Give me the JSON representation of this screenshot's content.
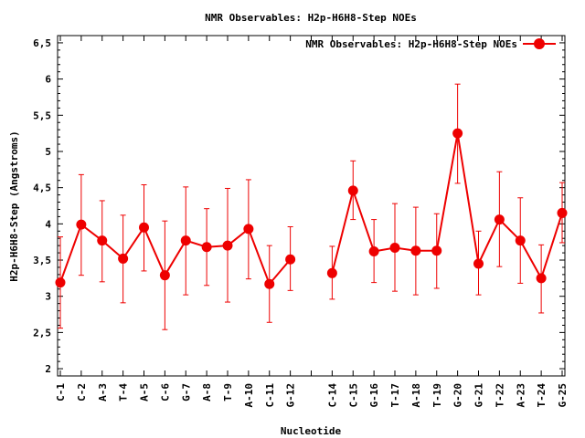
{
  "chart_data": {
    "type": "line",
    "title": "NMR Observables: H2p-H6H8-Step NOEs",
    "xlabel": "Nucleotide",
    "ylabel": "H2p-H6H8-Step (Angstroms)",
    "ylim": [
      1.9,
      6.6
    ],
    "yticks": [
      "2",
      "2,5",
      "3",
      "3,5",
      "4",
      "4,5",
      "5",
      "5,5",
      "6",
      "6,5"
    ],
    "ytick_values": [
      2,
      2.5,
      3,
      3.5,
      4,
      4.5,
      5,
      5.5,
      6,
      6.5
    ],
    "legend_position": "top-right",
    "grid": false,
    "series_color": "#ee0000",
    "categories": [
      "C-1",
      "C-2",
      "A-3",
      "T-4",
      "A-5",
      "C-6",
      "G-7",
      "A-8",
      "T-9",
      "A-10",
      "C-11",
      "G-12",
      "",
      "C-14",
      "C-15",
      "G-16",
      "T-17",
      "A-18",
      "T-19",
      "G-20",
      "G-21",
      "T-22",
      "A-23",
      "T-24",
      "G-25"
    ],
    "series": [
      {
        "name": "NMR Observables: H2p-H6H8-Step NOEs",
        "values": [
          3.19,
          3.99,
          3.77,
          3.52,
          3.95,
          3.29,
          3.77,
          3.68,
          3.7,
          3.93,
          3.17,
          3.51,
          null,
          3.32,
          4.46,
          3.62,
          3.67,
          3.63,
          3.63,
          5.25,
          3.45,
          4.06,
          3.77,
          3.25,
          4.15
        ],
        "err_low": [
          2.56,
          3.29,
          3.2,
          2.91,
          3.35,
          2.54,
          3.02,
          3.15,
          2.92,
          3.24,
          2.64,
          3.08,
          null,
          2.96,
          4.06,
          3.19,
          3.07,
          3.02,
          3.11,
          4.56,
          3.02,
          3.41,
          3.18,
          2.77,
          3.74
        ],
        "err_high": [
          3.82,
          4.68,
          4.32,
          4.12,
          4.54,
          4.04,
          4.51,
          4.21,
          4.49,
          4.61,
          3.7,
          3.96,
          null,
          3.69,
          4.87,
          4.06,
          4.28,
          4.23,
          4.14,
          5.93,
          3.9,
          4.72,
          4.36,
          3.71,
          4.57
        ]
      }
    ]
  }
}
